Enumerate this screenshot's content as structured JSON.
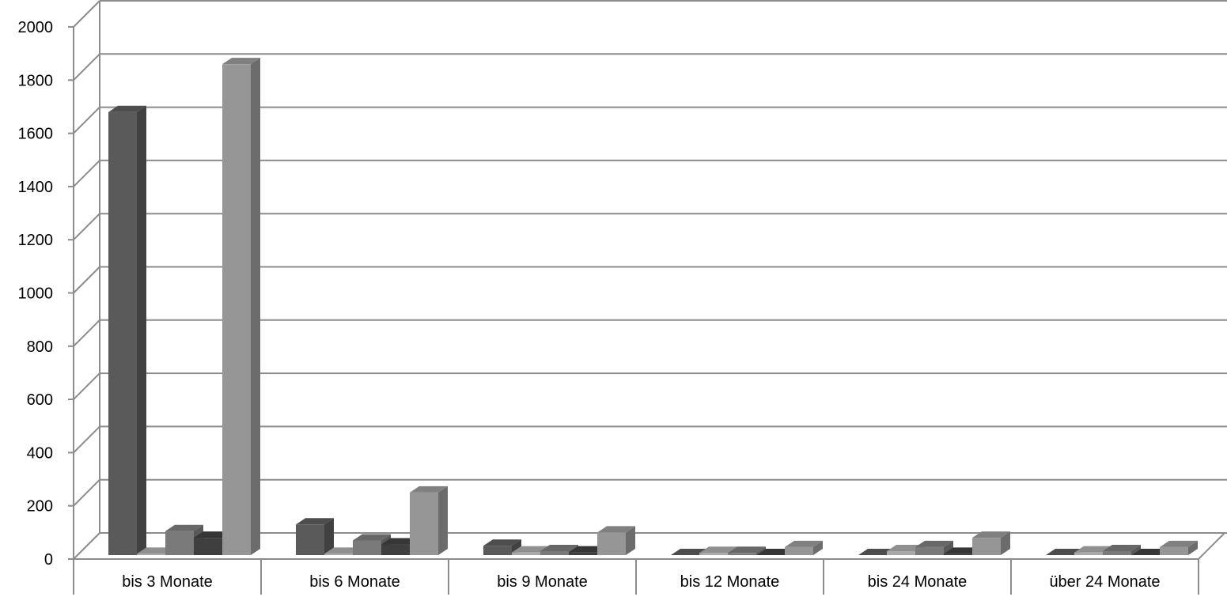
{
  "chart_data": {
    "type": "bar",
    "title": "",
    "xlabel": "",
    "ylabel": "",
    "ylim": [
      0,
      2000
    ],
    "y_ticks": [
      0,
      200,
      400,
      600,
      800,
      1000,
      1200,
      1400,
      1600,
      1800,
      2000
    ],
    "grid": true,
    "legend": "none",
    "style": "3d-clustered-column",
    "categories": [
      "bis 3 Monate",
      "bis 6 Monate",
      "bis 9 Monate",
      "bis 12 Monate",
      "bis 24 Monate",
      "über 24 Monate"
    ],
    "series": [
      {
        "values": [
          1665,
          115,
          35,
          0,
          0,
          0
        ],
        "color": "#5a5a5a"
      },
      {
        "values": [
          5,
          5,
          10,
          8,
          15,
          10
        ],
        "color": "#a9a9a9"
      },
      {
        "values": [
          90,
          55,
          15,
          8,
          30,
          15
        ],
        "color": "#7a7a7a"
      },
      {
        "values": [
          65,
          40,
          10,
          0,
          5,
          0
        ],
        "color": "#3f3f3f"
      },
      {
        "values": [
          1845,
          235,
          85,
          30,
          65,
          30
        ],
        "color": "#969696"
      }
    ]
  }
}
